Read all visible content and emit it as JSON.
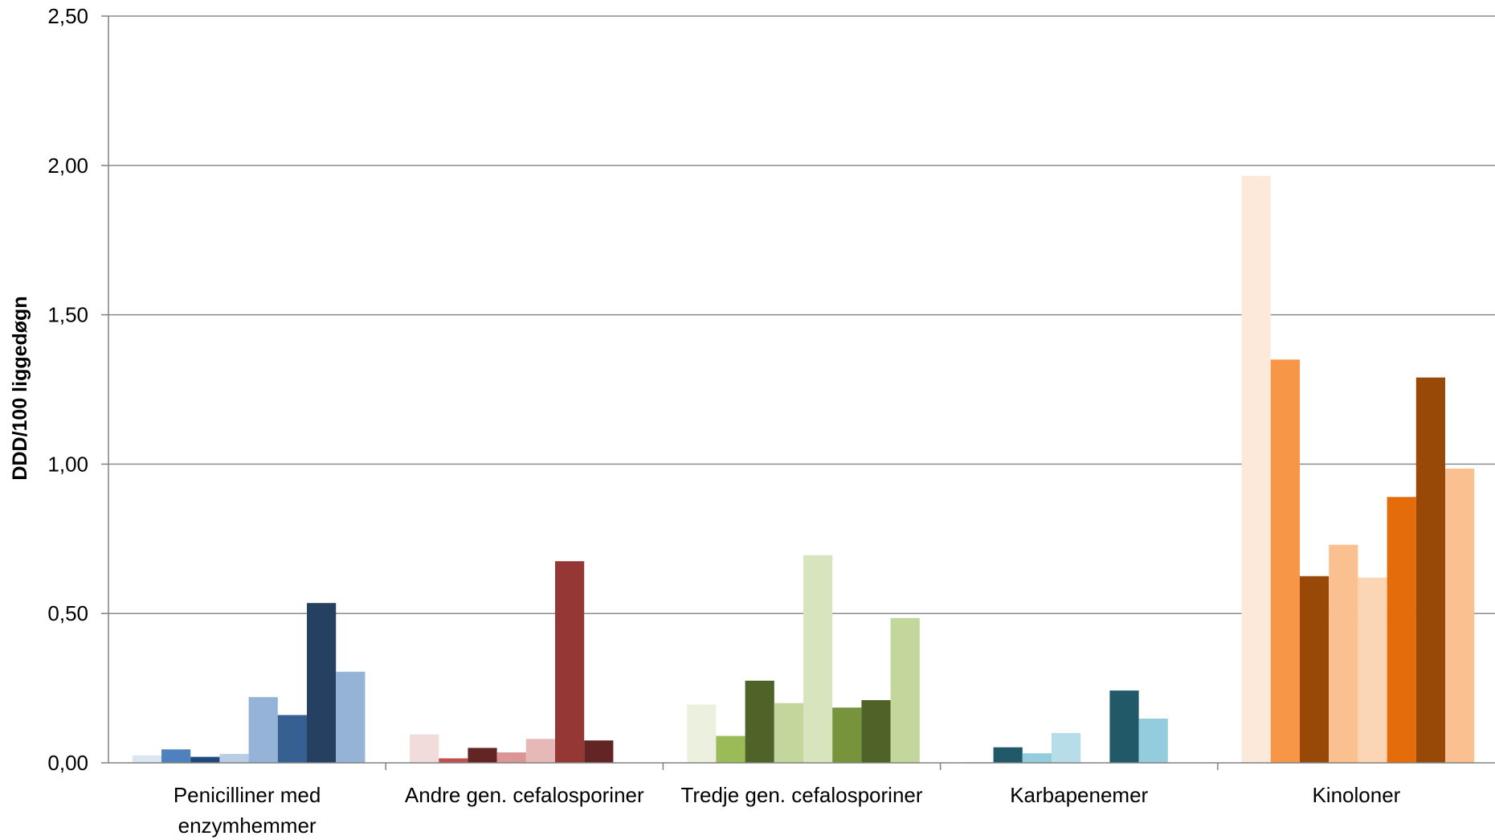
{
  "chart_data": {
    "type": "bar",
    "title": "",
    "xlabel": "",
    "ylabel": "DDD/100 liggedøgn",
    "ylim": [
      0,
      2.5
    ],
    "yticks": [
      "0,00",
      "0,50",
      "1,00",
      "1,50",
      "2,00",
      "2,50"
    ],
    "grid": true,
    "legend": "none",
    "groups": [
      {
        "label_lines": [
          "Penicilliner med",
          "enzymhemmer"
        ],
        "values": [
          0.025,
          0.045,
          0.02,
          0.03,
          0.22,
          0.16,
          0.535,
          0.305
        ],
        "colors": [
          "#DCE6F2",
          "#4F81BD",
          "#1F497D",
          "#B9CDE5",
          "#95B3D7",
          "#376092",
          "#254061",
          "#95B3D7"
        ]
      },
      {
        "label_lines": [
          "Andre gen. cefalosporiner"
        ],
        "values": [
          0.095,
          0.015,
          0.05,
          0.035,
          0.08,
          0.675,
          0.075,
          null
        ],
        "colors": [
          "#F2DCDB",
          "#C0504D",
          "#632523",
          "#D99694",
          "#E6B9B8",
          "#953735",
          "#632523",
          "#E6B9B8"
        ]
      },
      {
        "label_lines": [
          "Tredje gen. cefalosporiner"
        ],
        "values": [
          0.195,
          0.09,
          0.275,
          0.2,
          0.695,
          0.185,
          0.21,
          0.485
        ],
        "colors": [
          "#EBF1DE",
          "#9BBB59",
          "#4F6228",
          "#C3D69B",
          "#D7E4BD",
          "#77933C",
          "#4F6228",
          "#C3D69B"
        ]
      },
      {
        "label_lines": [
          "Karbapenemer"
        ],
        "values": [
          0.003,
          0.052,
          0.032,
          0.1,
          null,
          0.242,
          0.148,
          null
        ],
        "colors": [
          "#DBEEF4",
          "#215968",
          "#93CDDD",
          "#B7DEE8",
          "#DBEEF4",
          "#215968",
          "#93CDDD",
          "#B7DEE8"
        ]
      },
      {
        "label_lines": [
          "Kinoloner"
        ],
        "values": [
          1.965,
          1.35,
          0.625,
          0.73,
          0.62,
          0.89,
          1.29,
          0.985
        ],
        "colors": [
          "#FDE9D9",
          "#F79646",
          "#984807",
          "#FAC090",
          "#FCD5B5",
          "#E46C0A",
          "#984807",
          "#FAC090"
        ]
      }
    ]
  },
  "colors": {
    "gridline": "#8C8C8C",
    "axis": "#808080",
    "text": "#000000"
  }
}
